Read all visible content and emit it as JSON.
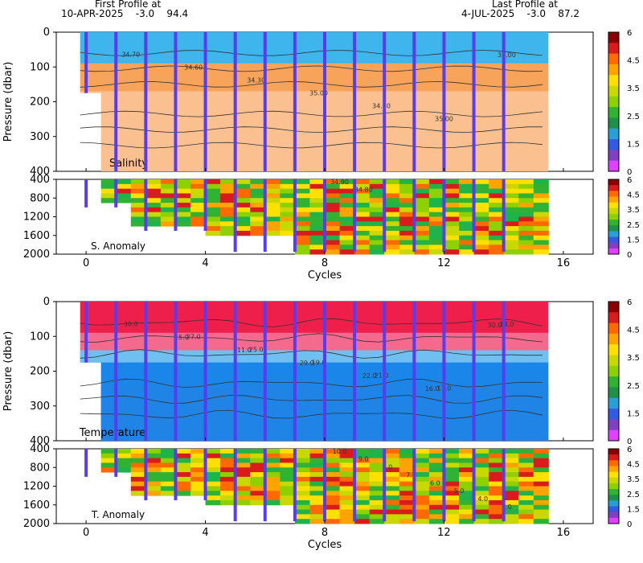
{
  "header": {
    "first_title": "First Profile at",
    "first_info": "10-APR-2025    -3.0    94.4",
    "last_title": "Last Profile at",
    "last_info": "4-JUL-2025    -3.0    87.2"
  },
  "colors": {
    "sal_upper": "#3fb5ee",
    "sal_lower": "#fbc090",
    "temp_upper": "#ee1f4a",
    "temp_lower": "#1a86e9",
    "profile_dots": "#5a3cf0"
  },
  "chart_data": [
    {
      "type": "heatmap",
      "name": "salinity-section",
      "ylabel": "Pressure (dbar)",
      "ylim": [
        400,
        0
      ],
      "yticks": [
        "0",
        "100",
        "200",
        "300",
        "400"
      ],
      "xlim": [
        -1,
        17
      ],
      "panel_label": "Salinity",
      "contour_labels": [
        "34.70",
        "34.60",
        "34.30",
        "35.00",
        "34.80",
        "35.00",
        "35.00"
      ],
      "profile_cycles": [
        0,
        1,
        2,
        3,
        4,
        5,
        6,
        7,
        8,
        9,
        10,
        11,
        12,
        13,
        14
      ]
    },
    {
      "type": "heatmap",
      "name": "salinity-anomaly",
      "ylim": [
        2000,
        400
      ],
      "yticks": [
        "400",
        "800",
        "1200",
        "1600",
        "2000"
      ],
      "panel_label": "S. Anomaly",
      "contour_labels": [
        "34.90",
        "34.80"
      ],
      "xlabel": "Cycles",
      "xticks": [
        "0",
        "4",
        "8",
        "12",
        "16"
      ]
    },
    {
      "type": "heatmap",
      "name": "temperature-section",
      "ylabel": "Pressure (dbar)",
      "ylim": [
        400,
        0
      ],
      "yticks": [
        "0",
        "100",
        "200",
        "300",
        "400"
      ],
      "panel_label": "Temperature",
      "contour_labels": [
        "30.0",
        "27.0",
        "25.0",
        "19.0",
        "21.0",
        "17.0",
        "13.0",
        "15.0",
        "11.0",
        "29.0",
        "22.0",
        "16.0",
        "30.0"
      ]
    },
    {
      "type": "heatmap",
      "name": "temperature-anomaly",
      "ylim": [
        2000,
        400
      ],
      "yticks": [
        "400",
        "800",
        "1200",
        "1600",
        "2000"
      ],
      "panel_label": "T. Anomaly",
      "contour_labels": [
        "10.0",
        "9.0",
        "8.0",
        "7.0",
        "6.0",
        "5.0",
        "4.0",
        "3.0"
      ],
      "xlabel": "Cycles",
      "xticks": [
        "0",
        "4",
        "8",
        "12",
        "16"
      ]
    }
  ],
  "colorbar": {
    "labels": [
      "6",
      "4.5",
      "3.5",
      "2.5",
      "1.5",
      "0"
    ],
    "colors": [
      "#8b0000",
      "#d81c1c",
      "#ff6a00",
      "#ffa300",
      "#ffe000",
      "#c8d800",
      "#8ed000",
      "#32b232",
      "#1f8f4a",
      "#2a9fd6",
      "#3559e0",
      "#8040c0",
      "#e040ff"
    ]
  }
}
